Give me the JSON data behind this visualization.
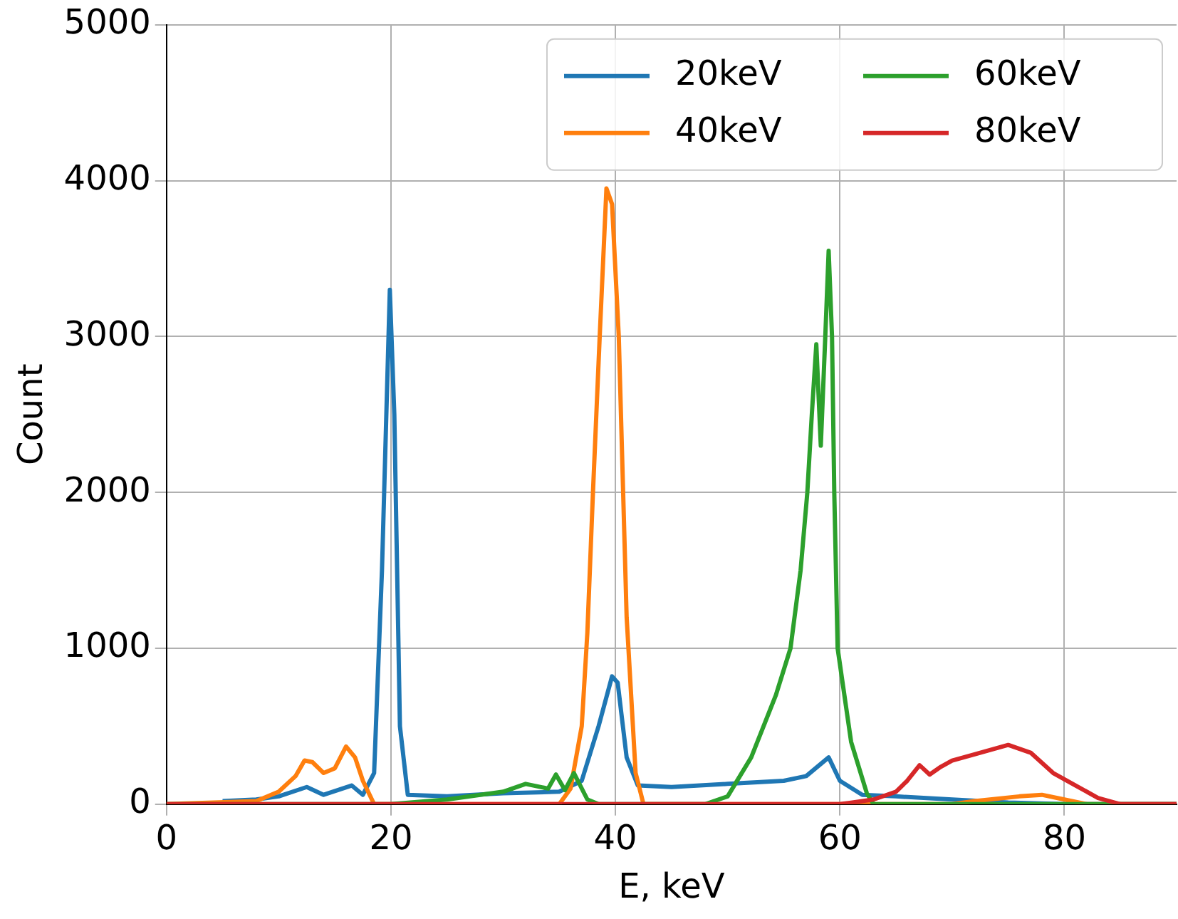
{
  "chart_data": {
    "type": "line",
    "xlabel": "E, keV",
    "ylabel": "Count",
    "xlim": [
      0,
      90
    ],
    "xticks": [
      0,
      20,
      40,
      60,
      80
    ],
    "ylim": [
      0,
      5000
    ],
    "yticks": [
      0,
      1000,
      2000,
      3000,
      4000,
      5000
    ],
    "grid": true,
    "legend": "top right",
    "marker": "none",
    "line_style": "solid",
    "series": [
      {
        "name": "20keV",
        "color": "#1f77b4",
        "x": [
          5,
          8,
          10,
          12.5,
          14,
          16.5,
          17.5,
          18.5,
          19.2,
          19.9,
          20.3,
          20.8,
          21.5,
          25,
          30,
          35,
          37,
          38.5,
          39.7,
          40.2,
          41,
          42,
          45,
          50,
          55,
          57,
          59,
          60,
          62,
          65,
          70,
          75,
          80,
          90
        ],
        "values": [
          20,
          30,
          50,
          110,
          60,
          120,
          60,
          200,
          1500,
          3300,
          2500,
          500,
          60,
          50,
          70,
          80,
          150,
          500,
          820,
          780,
          300,
          120,
          110,
          130,
          150,
          180,
          300,
          150,
          60,
          50,
          30,
          10,
          0,
          0
        ]
      },
      {
        "name": "40keV",
        "color": "#ff7f0e",
        "x": [
          0,
          8,
          10,
          11.5,
          12.3,
          13,
          14,
          15,
          16,
          16.8,
          17.5,
          18.5,
          35,
          36,
          37,
          37.5,
          38,
          38.6,
          39.2,
          39.7,
          40.3,
          41,
          41.8,
          42.5,
          70,
          72,
          76,
          78,
          80,
          82,
          90
        ],
        "values": [
          0,
          20,
          80,
          180,
          280,
          270,
          200,
          230,
          370,
          300,
          150,
          0,
          0,
          100,
          500,
          1100,
          2000,
          3000,
          3950,
          3850,
          3000,
          1200,
          200,
          0,
          0,
          20,
          50,
          60,
          30,
          0,
          0
        ]
      },
      {
        "name": "60keV",
        "color": "#2ca02c",
        "x": [
          0,
          20,
          25,
          30,
          32,
          34,
          34.7,
          35.5,
          36.3,
          37.5,
          38.5,
          48,
          50,
          52.1,
          54.3,
          55.6,
          56.5,
          57.1,
          57.5,
          57.9,
          58.3,
          58.7,
          59,
          59.3,
          59.5,
          59.8,
          60.3,
          61,
          62.4,
          63,
          90
        ],
        "values": [
          0,
          0,
          30,
          80,
          130,
          100,
          190,
          90,
          200,
          30,
          0,
          0,
          50,
          300,
          700,
          1000,
          1500,
          2000,
          2500,
          2950,
          2300,
          3000,
          3550,
          3000,
          2000,
          1000,
          750,
          400,
          70,
          0,
          0
        ]
      },
      {
        "name": "80keV",
        "color": "#d62728",
        "x": [
          0,
          60,
          61,
          63,
          65,
          66,
          67.1,
          68,
          69,
          70,
          72,
          75,
          77,
          79,
          81,
          83,
          85,
          90
        ],
        "values": [
          0,
          0,
          10,
          30,
          80,
          150,
          250,
          190,
          240,
          280,
          320,
          380,
          330,
          200,
          120,
          40,
          0,
          0
        ]
      }
    ]
  }
}
